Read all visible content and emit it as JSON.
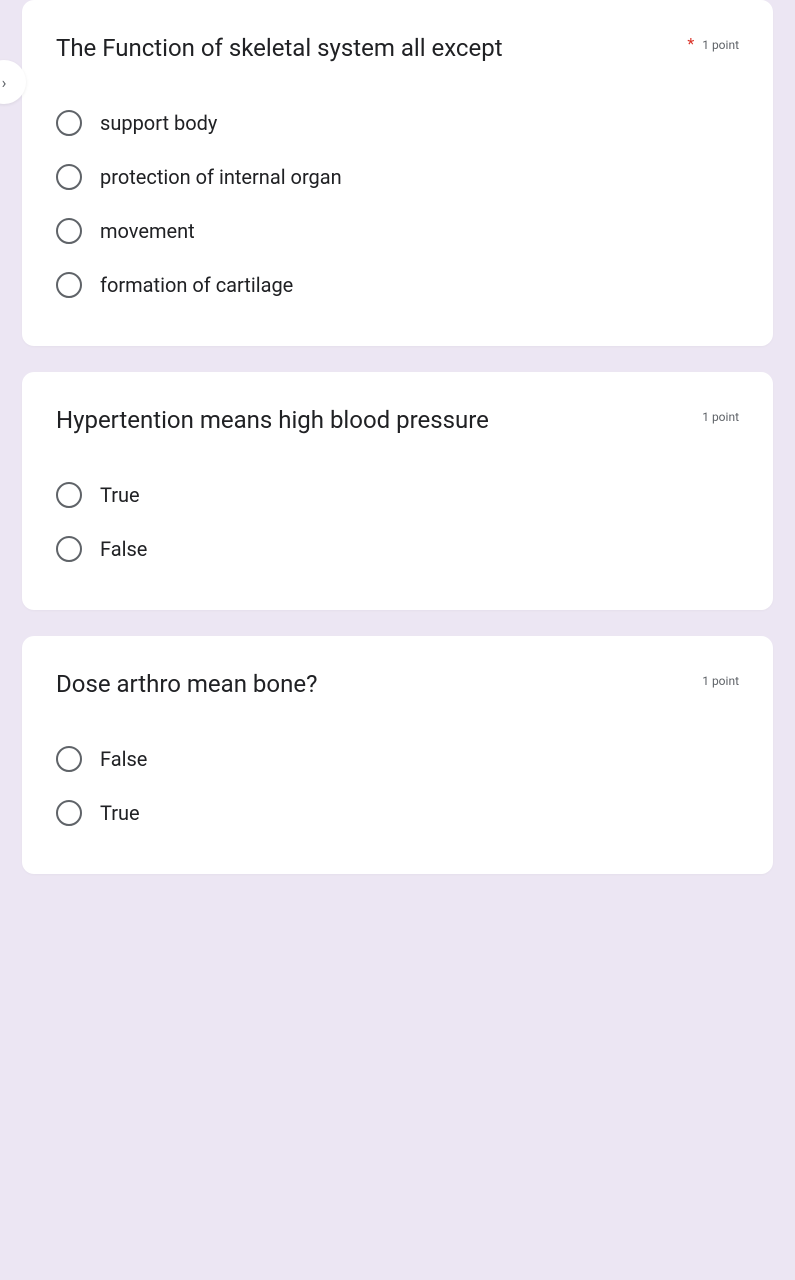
{
  "navIcon": "›",
  "questions": [
    {
      "text": "The Function of skeletal system all except",
      "required": "*",
      "points": "1 point",
      "options": [
        "support body",
        "protection of internal organ",
        "movement",
        "formation of cartilage"
      ]
    },
    {
      "text": "Hypertention means high blood pressure",
      "required": "",
      "points": "1 point",
      "options": [
        "True",
        "False"
      ]
    },
    {
      "text": "Dose arthro mean bone? ",
      "required": "",
      "points": "1 point",
      "options": [
        "False",
        "True"
      ]
    }
  ]
}
